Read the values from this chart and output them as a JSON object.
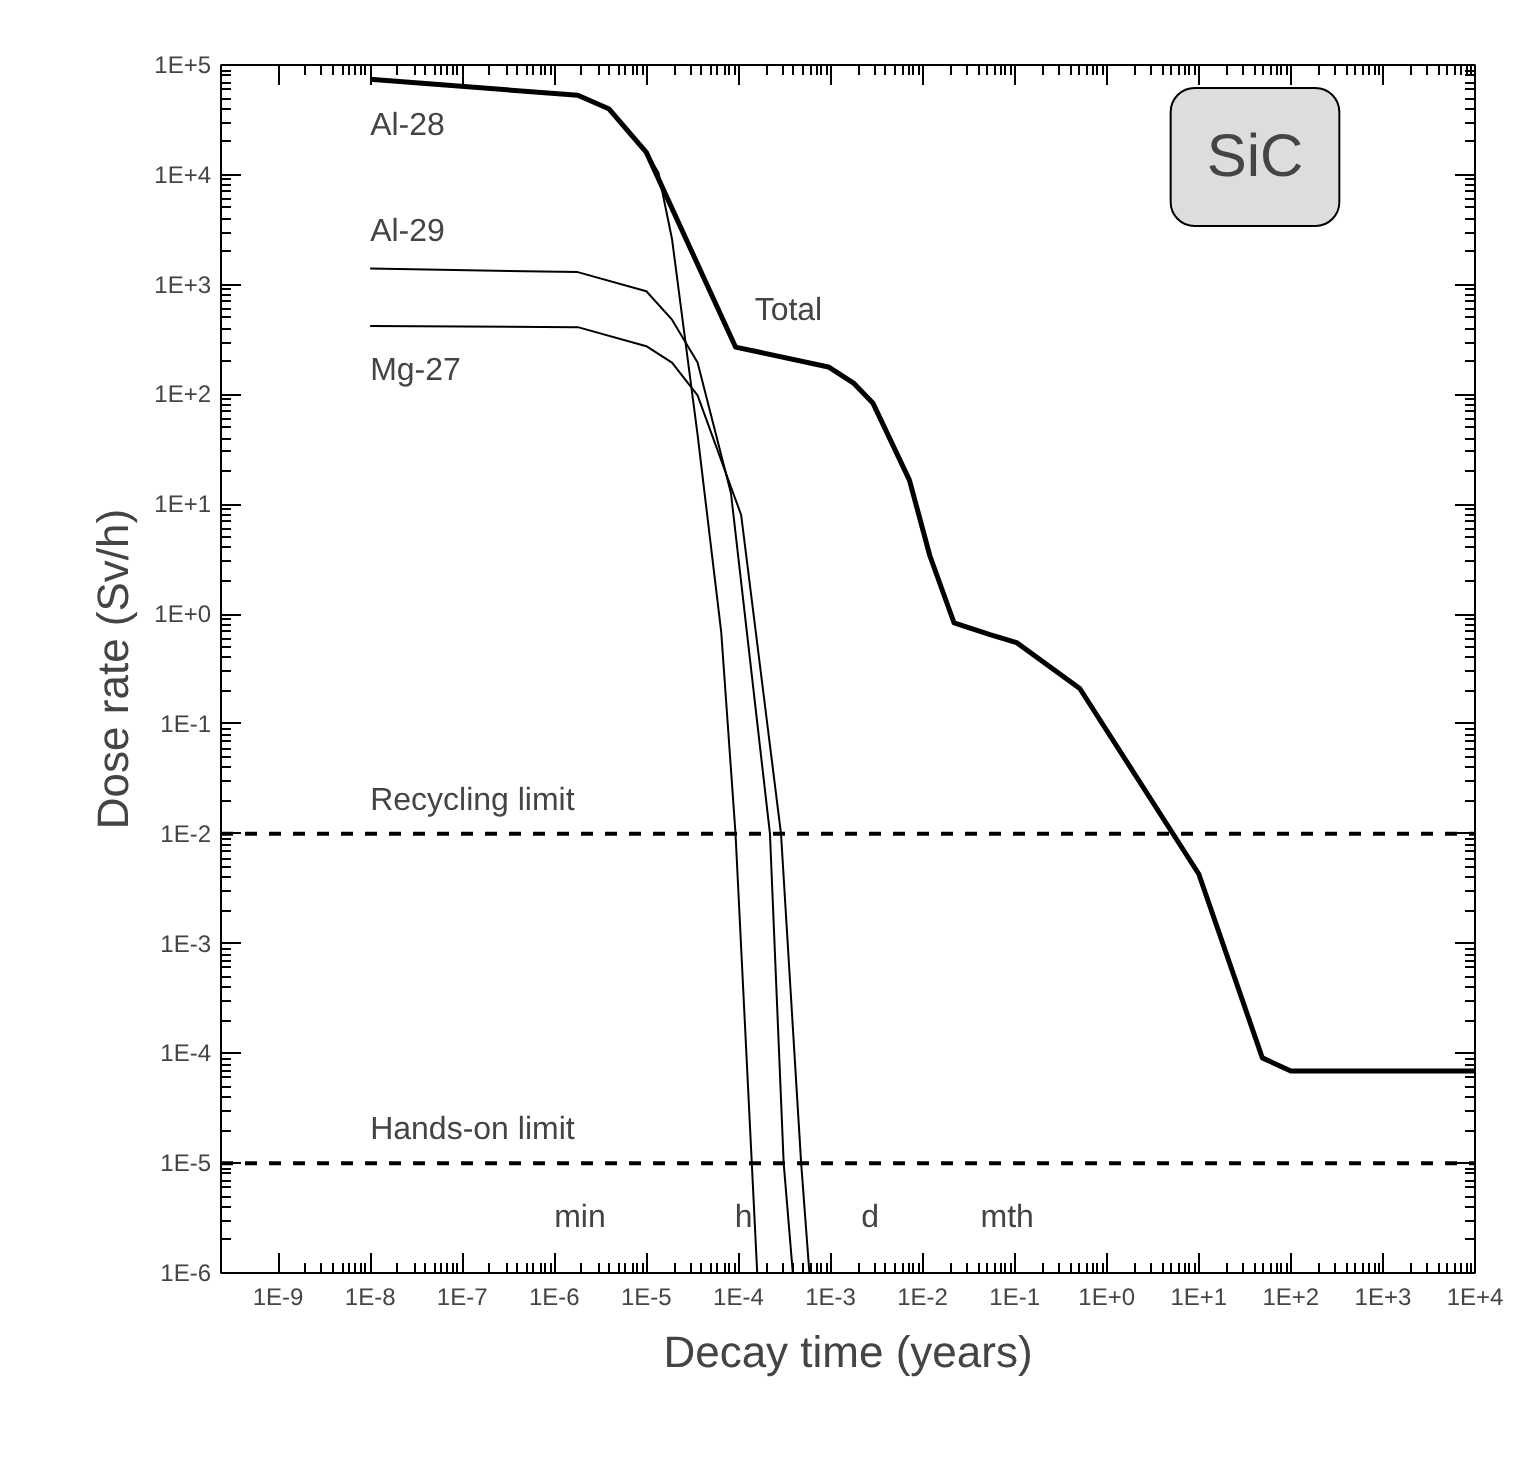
{
  "chart_data": {
    "type": "line",
    "xlabel": "Decay time (years)",
    "ylabel": "Dose rate (Sv/h)",
    "log": "xy",
    "grid": false,
    "line_style": "solid",
    "marker": "none",
    "xlim": [
      2.4e-10,
      10000
    ],
    "ylim": [
      1e-06,
      100000
    ],
    "xticks": [
      {
        "value": 1e-09,
        "label": "1E-9"
      },
      {
        "value": 1e-08,
        "label": "1E-8"
      },
      {
        "value": 1e-07,
        "label": "1E-7"
      },
      {
        "value": 1e-06,
        "label": "1E-6"
      },
      {
        "value": 1e-05,
        "label": "1E-5"
      },
      {
        "value": 0.0001,
        "label": "1E-4"
      },
      {
        "value": 0.001,
        "label": "1E-3"
      },
      {
        "value": 0.01,
        "label": "1E-2"
      },
      {
        "value": 0.1,
        "label": "1E-1"
      },
      {
        "value": 1,
        "label": "1E+0"
      },
      {
        "value": 10,
        "label": "1E+1"
      },
      {
        "value": 100,
        "label": "1E+2"
      },
      {
        "value": 1000,
        "label": "1E+3"
      },
      {
        "value": 10000,
        "label": "1E+4"
      }
    ],
    "yticks": [
      {
        "value": 1e-06,
        "label": "1E-6"
      },
      {
        "value": 1e-05,
        "label": "1E-5"
      },
      {
        "value": 0.0001,
        "label": "1E-4"
      },
      {
        "value": 0.001,
        "label": "1E-3"
      },
      {
        "value": 0.01,
        "label": "1E-2"
      },
      {
        "value": 0.1,
        "label": "1E-1"
      },
      {
        "value": 1,
        "label": "1E+0"
      },
      {
        "value": 10,
        "label": "1E+1"
      },
      {
        "value": 100,
        "label": "1E+2"
      },
      {
        "value": 1000,
        "label": "1E+3"
      },
      {
        "value": 10000,
        "label": "1E+4"
      },
      {
        "value": 100000,
        "label": "1E+5"
      }
    ],
    "series": [
      {
        "name": "Total",
        "color": "#000000",
        "x": [
          1e-08,
          1.8e-06,
          3.9e-06,
          1e-05,
          9.3e-05,
          0.00095,
          0.0018,
          0.0029,
          0.0072,
          0.012,
          0.022,
          0.054,
          0.105,
          0.51,
          10,
          49,
          100,
          10000
        ],
        "values": [
          74000,
          53000,
          40000,
          16000,
          270,
          178,
          126,
          83,
          16.6,
          3.4,
          0.83,
          0.65,
          0.55,
          0.21,
          0.0043,
          9.1e-05,
          6.9e-05,
          6.9e-05
        ]
      },
      {
        "name": "Al-28",
        "color": "#000000",
        "x": [
          1e-08,
          1.8e-06,
          3.9e-06,
          1e-05,
          1.35e-05,
          1.9e-05,
          3.6e-05,
          6.5e-05,
          9.3e-05,
          0.00016
        ],
        "values": [
          74000,
          53000,
          40000,
          16000,
          10500,
          2600,
          43,
          0.69,
          0.01,
          1e-06
        ]
      },
      {
        "name": "Al-29",
        "color": "#000000",
        "x": [
          1e-08,
          1.8e-06,
          1e-05,
          1.9e-05,
          3.6e-05,
          8.3e-05,
          0.00022,
          0.00031,
          0.00039
        ],
        "values": [
          1400,
          1300,
          870,
          480,
          195,
          12.6,
          0.01,
          1e-05,
          1e-06
        ]
      },
      {
        "name": "Mg-27",
        "color": "#000000",
        "x": [
          1e-08,
          1.8e-06,
          1e-05,
          1.9e-05,
          3.6e-05,
          0.000107,
          0.00029,
          0.00048,
          0.00059
        ],
        "values": [
          420,
          410,
          275,
          195,
          98,
          8,
          0.01,
          1e-05,
          1e-06
        ]
      }
    ],
    "ref_lines": [
      {
        "axis": "y",
        "value": 0.01,
        "label": "Recycling limit",
        "color": "#000000",
        "line_style": "dashed"
      },
      {
        "axis": "y",
        "value": 1e-05,
        "label": "Hands-on limit",
        "color": "#000000",
        "line_style": "dashed"
      }
    ],
    "annotations": [
      "SiC",
      "min",
      "h",
      "d",
      "mth"
    ]
  }
}
